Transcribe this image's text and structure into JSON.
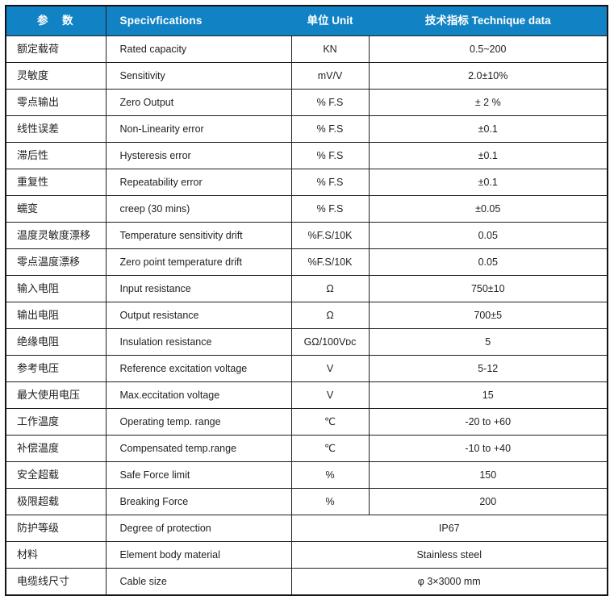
{
  "colors": {
    "header_bg": "#1182c4",
    "header_text": "#ffffff",
    "border": "#1e1e1e"
  },
  "table": {
    "header": {
      "param": "参　数",
      "spec": "Specivfications",
      "unit": "单位   Unit",
      "data": "技术指标      Technique data"
    },
    "rows": [
      {
        "cn": "额定载荷",
        "en": "Rated capacity",
        "unit": "KN",
        "value": "0.5~200"
      },
      {
        "cn": "灵敏度",
        "en": "Sensitivity",
        "unit": "mV/V",
        "value": "2.0±10%"
      },
      {
        "cn": "零点输出",
        "en": "Zero Output",
        "unit": "% F.S",
        "value": "± 2 %"
      },
      {
        "cn": "线性误差",
        "en": "Non-Linearity error",
        "unit": "% F.S",
        "value": "±0.1"
      },
      {
        "cn": "滞后性",
        "en": "Hysteresis error",
        "unit": "% F.S",
        "value": "±0.1"
      },
      {
        "cn": "重复性",
        "en": "Repeatability error",
        "unit": "% F.S",
        "value": "±0.1"
      },
      {
        "cn": "蠕变",
        "en": "creep (30 mins)",
        "unit": "% F.S",
        "value": "±0.05"
      },
      {
        "cn": "温度灵敏度漂移",
        "en": "Temperature sensitivity drift",
        "unit": "%F.S/10K",
        "value": "0.05"
      },
      {
        "cn": "零点温度漂移",
        "en": "Zero point temperature drift",
        "unit": "%F.S/10K",
        "value": "0.05"
      },
      {
        "cn": "输入电阻",
        "en": "Input resistance",
        "unit": "Ω",
        "value": "750±10"
      },
      {
        "cn": "输出电阻",
        "en": "Output resistance",
        "unit": "Ω",
        "value": "700±5"
      },
      {
        "cn": "绝缘电阻",
        "en": "Insulation resistance",
        "unit": "GΩ/100Vᴅᴄ",
        "value": "5"
      },
      {
        "cn": "参考电压",
        "en": "Reference excitation voltage",
        "unit": "V",
        "value": "5-12"
      },
      {
        "cn": "最大使用电压",
        "en": "Max.eccitation voltage",
        "unit": "V",
        "value": "15"
      },
      {
        "cn": "工作温度",
        "en": "Operating temp. range",
        "unit": "℃",
        "value": "-20 to +60"
      },
      {
        "cn": "补偿温度",
        "en": "Compensated temp.range",
        "unit": "℃",
        "value": "-10 to +40"
      },
      {
        "cn": "安全超载",
        "en": "Safe Force limit",
        "unit": "%",
        "value": "150"
      },
      {
        "cn": "极限超载",
        "en": "Breaking Force",
        "unit": "%",
        "value": "200"
      },
      {
        "cn": "防护等级",
        "en": "Degree of protection",
        "unit": null,
        "value": "IP67"
      },
      {
        "cn": "材料",
        "en": "Element body material",
        "unit": null,
        "value": "Stainless steel"
      },
      {
        "cn": "电缆线尺寸",
        "en": "Cable size",
        "unit": null,
        "value": "φ 3×3000 mm"
      }
    ]
  }
}
